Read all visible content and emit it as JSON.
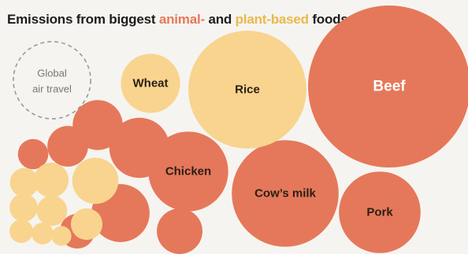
{
  "title": {
    "prefix": "Emissions from biggest ",
    "animal": "animal-",
    "middle": " and ",
    "plant": "plant-based",
    "suffix": " foods"
  },
  "colors": {
    "animal": "#e5785a",
    "plant": "#f8d48f",
    "reference_outline": "#9a9a9a",
    "background": "#f6f4f0"
  },
  "chart_data": {
    "type": "bubble",
    "title": "Emissions from biggest animal- and plant-based foods",
    "reference": {
      "name": "Global air travel",
      "lines": [
        "Global",
        "air travel"
      ],
      "relative_area": 0.227
    },
    "series": [
      {
        "name": "animal-",
        "items": [
          {
            "label": "Beef",
            "relative_area": 1.0
          },
          {
            "label": "Cow’s milk",
            "relative_area": 0.433
          },
          {
            "label": "Chicken",
            "relative_area": 0.242
          },
          {
            "label": "Pork",
            "relative_area": 0.253
          },
          {
            "label": "",
            "relative_area": 0.138
          },
          {
            "label": "",
            "relative_area": 0.128
          },
          {
            "label": "",
            "relative_area": 0.095
          },
          {
            "label": "",
            "relative_area": 0.079
          },
          {
            "label": "",
            "relative_area": 0.063
          },
          {
            "label": "",
            "relative_area": 0.046
          },
          {
            "label": "",
            "relative_area": 0.035
          }
        ]
      },
      {
        "name": "plant-based",
        "items": [
          {
            "label": "Rice",
            "relative_area": 0.53
          },
          {
            "label": "Wheat",
            "relative_area": 0.133
          },
          {
            "label": "",
            "relative_area": 0.081
          },
          {
            "label": "",
            "relative_area": 0.046
          },
          {
            "label": "",
            "relative_area": 0.038
          },
          {
            "label": "",
            "relative_area": 0.035
          },
          {
            "label": "",
            "relative_area": 0.032
          },
          {
            "label": "",
            "relative_area": 0.03
          },
          {
            "label": "",
            "relative_area": 0.021
          },
          {
            "label": "",
            "relative_area": 0.018
          },
          {
            "label": "",
            "relative_area": 0.015
          }
        ]
      }
    ]
  }
}
